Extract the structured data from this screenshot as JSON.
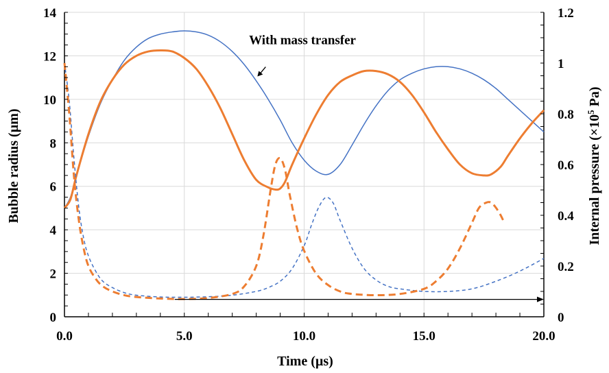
{
  "chart_data": {
    "type": "line",
    "title": "",
    "xlabel": "Time (µs)",
    "ylabel_left": "Bubble radius (µm)",
    "ylabel_right": "Internal pressure (×10",
    "ylabel_right_sup": "5",
    "ylabel_right_unit": " Pa)",
    "xlim": [
      0,
      20
    ],
    "ylim_left": [
      0,
      14
    ],
    "ylim_right": [
      0,
      1.2
    ],
    "grid": true,
    "legend": "none",
    "x_ticks": [
      0,
      5,
      10,
      15,
      20
    ],
    "x_tick_labels": [
      "0.0",
      "5.0",
      "10.0",
      "15.0",
      "20.0"
    ],
    "y_left_ticks": [
      0,
      2,
      4,
      6,
      8,
      10,
      12,
      14
    ],
    "y_left_tick_labels": [
      "0",
      "2",
      "4",
      "6",
      "8",
      "10",
      "12",
      "14"
    ],
    "y_right_ticks": [
      0,
      0.2,
      0.4,
      0.6,
      0.8,
      1.0,
      1.2
    ],
    "y_right_tick_labels": [
      "0",
      "0.2",
      "0.4",
      "0.6",
      "0.8",
      "1",
      "1.2"
    ],
    "annotation": {
      "text": "With mass transfer",
      "text_x": 7.7,
      "text_y": 12.5,
      "point_x": 8.05,
      "point_y": 11.05
    },
    "arrow": {
      "x_start": 4.6,
      "x_end": 20.0,
      "y": 0.8
    },
    "colors": {
      "blue": "#4472c4",
      "orange": "#ed7d31"
    },
    "series": [
      {
        "axis": "left",
        "color": "#4472c4",
        "style": "solid",
        "width": 1.5,
        "x": [
          0,
          0.25,
          0.5,
          1,
          1.5,
          2,
          2.5,
          3,
          3.5,
          4,
          4.5,
          5,
          5.5,
          6,
          6.5,
          7,
          7.5,
          8,
          8.5,
          9,
          9.5,
          10,
          10.5,
          11,
          11.5,
          12,
          12.5,
          13,
          13.5,
          14,
          14.5,
          15,
          15.5,
          16,
          16.5,
          17,
          17.5,
          18,
          18.5,
          19,
          19.5,
          20
        ],
        "y": [
          5.0,
          5.5,
          6.5,
          8.3,
          9.8,
          10.9,
          11.8,
          12.4,
          12.8,
          13.0,
          13.1,
          13.15,
          13.1,
          12.95,
          12.65,
          12.2,
          11.6,
          10.85,
          10.0,
          9.05,
          8.0,
          7.2,
          6.7,
          6.55,
          7.0,
          7.9,
          8.85,
          9.7,
          10.4,
          10.9,
          11.2,
          11.4,
          11.5,
          11.5,
          11.4,
          11.2,
          10.9,
          10.5,
          10.0,
          9.5,
          9.0,
          8.5
        ]
      },
      {
        "axis": "left",
        "color": "#ed7d31",
        "style": "solid",
        "width": 3,
        "x": [
          0,
          0.25,
          0.5,
          1,
          1.5,
          2,
          2.5,
          3,
          3.5,
          4,
          4.5,
          5,
          5.5,
          6,
          6.5,
          7,
          7.5,
          8,
          8.5,
          8.8,
          9.0,
          9.2,
          9.5,
          10,
          10.5,
          11,
          11.5,
          12,
          12.5,
          13,
          13.5,
          14,
          14.5,
          15,
          15.5,
          16,
          16.5,
          17,
          17.5,
          17.8,
          18.2,
          18.5,
          19,
          19.5,
          20
        ],
        "y": [
          5.0,
          5.4,
          6.5,
          8.4,
          9.9,
          10.9,
          11.6,
          12.0,
          12.2,
          12.25,
          12.2,
          11.9,
          11.4,
          10.6,
          9.6,
          8.4,
          7.2,
          6.3,
          5.95,
          5.85,
          5.9,
          6.2,
          7.0,
          8.2,
          9.3,
          10.2,
          10.8,
          11.1,
          11.3,
          11.3,
          11.15,
          10.8,
          10.2,
          9.4,
          8.5,
          7.7,
          7.0,
          6.6,
          6.5,
          6.55,
          6.9,
          7.4,
          8.2,
          8.9,
          9.5
        ]
      },
      {
        "axis": "right",
        "color": "#4472c4",
        "style": "dashed",
        "width": 1.5,
        "x": [
          0,
          0.2,
          0.4,
          0.6,
          0.8,
          1,
          1.3,
          1.6,
          2,
          2.5,
          3,
          4,
          5,
          6,
          7,
          8,
          8.5,
          9,
          9.5,
          10,
          10.3,
          10.6,
          10.9,
          11.2,
          11.5,
          12,
          12.5,
          13,
          13.5,
          14,
          15,
          16,
          17,
          18,
          19,
          20
        ],
        "y": [
          1.0,
          0.85,
          0.62,
          0.43,
          0.31,
          0.24,
          0.18,
          0.14,
          0.115,
          0.095,
          0.085,
          0.078,
          0.077,
          0.079,
          0.085,
          0.1,
          0.115,
          0.14,
          0.19,
          0.28,
          0.36,
          0.43,
          0.47,
          0.45,
          0.38,
          0.27,
          0.19,
          0.145,
          0.12,
          0.11,
          0.1,
          0.1,
          0.11,
          0.14,
          0.18,
          0.23
        ]
      },
      {
        "axis": "right",
        "color": "#ed7d31",
        "style": "dashed",
        "width": 3,
        "x": [
          0,
          0.2,
          0.4,
          0.6,
          0.8,
          1,
          1.3,
          1.6,
          2,
          2.5,
          3,
          4,
          5,
          6,
          7,
          7.5,
          8,
          8.3,
          8.6,
          8.8,
          9.0,
          9.2,
          9.4,
          9.7,
          10,
          10.5,
          11,
          11.5,
          12,
          13,
          14,
          15,
          15.5,
          16,
          16.5,
          17,
          17.3,
          17.6,
          17.8,
          18,
          18.2,
          18.35
        ],
        "y": [
          1.0,
          0.8,
          0.55,
          0.38,
          0.27,
          0.2,
          0.15,
          0.12,
          0.1,
          0.085,
          0.078,
          0.072,
          0.07,
          0.074,
          0.09,
          0.12,
          0.2,
          0.32,
          0.5,
          0.6,
          0.625,
          0.58,
          0.48,
          0.35,
          0.26,
          0.17,
          0.125,
          0.1,
          0.09,
          0.085,
          0.09,
          0.11,
          0.14,
          0.19,
          0.27,
          0.37,
          0.43,
          0.45,
          0.45,
          0.43,
          0.4,
          0.37
        ]
      }
    ]
  }
}
